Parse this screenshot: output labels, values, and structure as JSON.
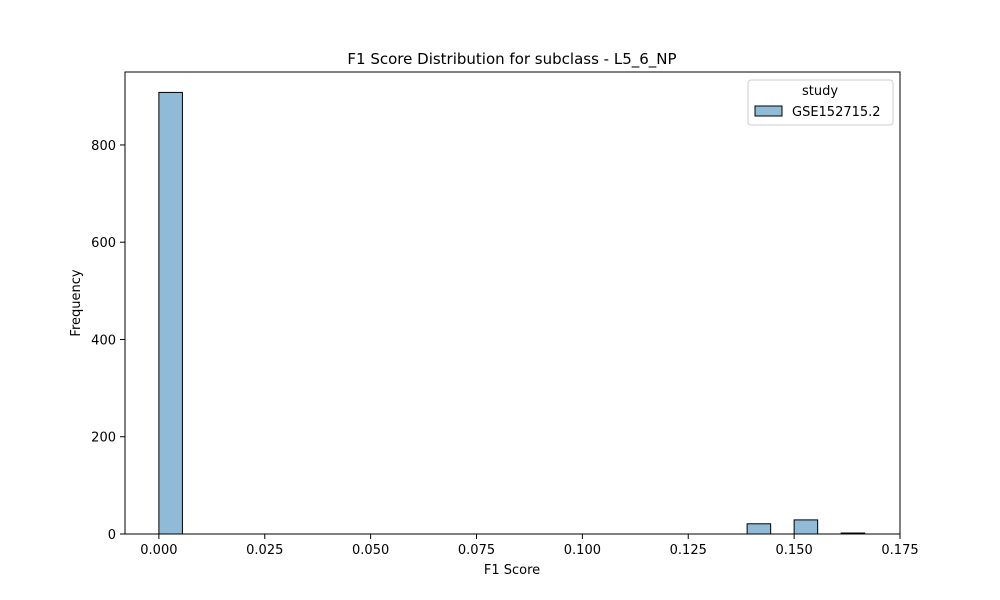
{
  "chart_data": {
    "type": "bar",
    "title": "F1 Score Distribution for subclass - L5_6_NP",
    "xlabel": "F1 Score",
    "ylabel": "Frequency",
    "xlim": [
      -0.008,
      0.175
    ],
    "ylim": [
      0,
      950
    ],
    "x_ticks": [
      0.0,
      0.025,
      0.05,
      0.075,
      0.1,
      0.125,
      0.15,
      0.175
    ],
    "x_tick_labels": [
      "0.000",
      "0.025",
      "0.050",
      "0.075",
      "0.100",
      "0.125",
      "0.150",
      "0.175"
    ],
    "y_ticks": [
      0,
      200,
      400,
      600,
      800
    ],
    "y_tick_labels": [
      "0",
      "200",
      "400",
      "600",
      "800"
    ],
    "bin_width": 0.00556,
    "bins": [
      {
        "x0": 0.0,
        "count": 908
      },
      {
        "x0": 0.1389,
        "count": 21
      },
      {
        "x0": 0.15,
        "count": 29
      },
      {
        "x0": 0.1611,
        "count": 2
      }
    ],
    "series": [
      {
        "name": "GSE152715.2",
        "color": "#8fbbd9",
        "edge_color": "#000000"
      }
    ],
    "legend": {
      "title": "study",
      "position": "top-right"
    },
    "grid": false
  }
}
